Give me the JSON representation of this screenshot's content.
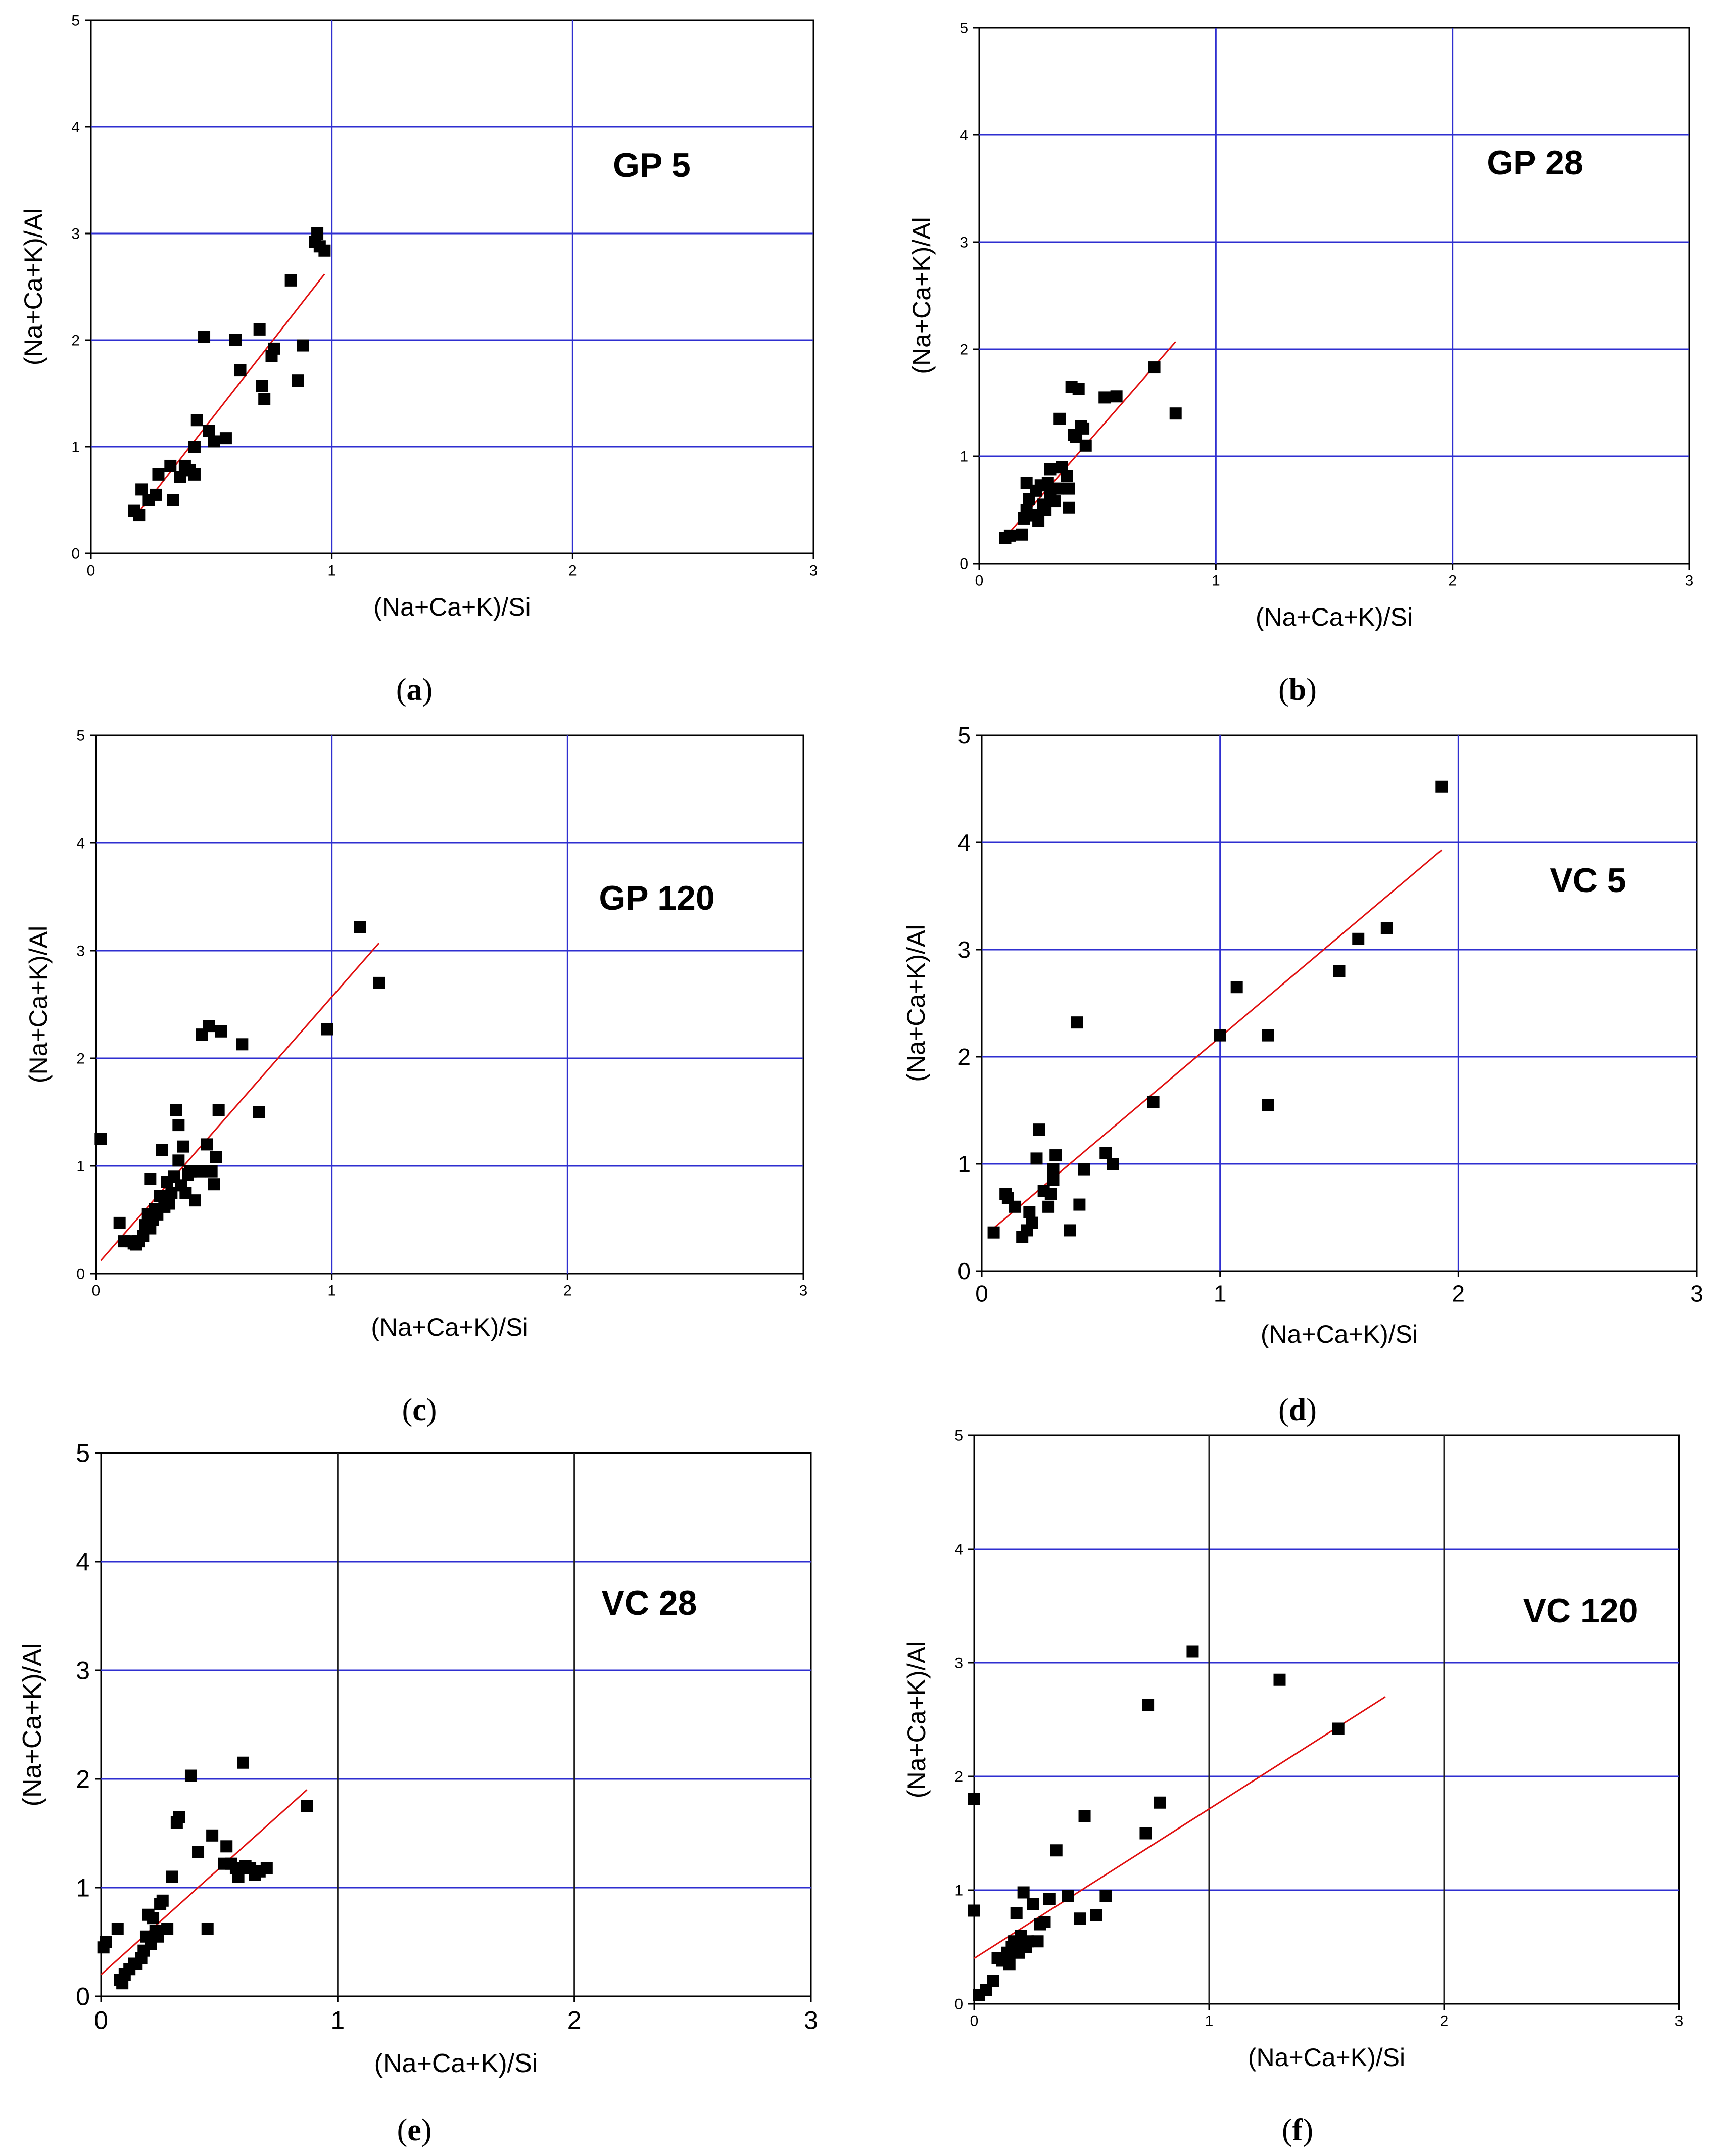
{
  "figure": {
    "title": ""
  },
  "chart_data": [
    {
      "type": "scatter",
      "panel": "(a)",
      "caption": "a",
      "title": "GP 5",
      "xlabel": "(Na+Ca+K)/Si",
      "ylabel": "(Na+Ca+K)/Al",
      "xlim": [
        0,
        3
      ],
      "ylim": [
        0,
        5
      ],
      "xticks": [
        "0",
        "1",
        "2",
        "3"
      ],
      "yticks": [
        "0",
        "1",
        "2",
        "3",
        "4",
        "5"
      ],
      "grid_color": "#2f2fd0",
      "points": [
        [
          0.18,
          0.4
        ],
        [
          0.2,
          0.36
        ],
        [
          0.21,
          0.6
        ],
        [
          0.24,
          0.5
        ],
        [
          0.27,
          0.55
        ],
        [
          0.28,
          0.74
        ],
        [
          0.33,
          0.82
        ],
        [
          0.34,
          0.5
        ],
        [
          0.37,
          0.72
        ],
        [
          0.39,
          0.82
        ],
        [
          0.41,
          0.78
        ],
        [
          0.43,
          0.74
        ],
        [
          0.43,
          1.0
        ],
        [
          0.44,
          1.25
        ],
        [
          0.47,
          2.03
        ],
        [
          0.49,
          1.15
        ],
        [
          0.51,
          1.05
        ],
        [
          0.56,
          1.08
        ],
        [
          0.6,
          2.0
        ],
        [
          0.62,
          1.72
        ],
        [
          0.7,
          2.1
        ],
        [
          0.71,
          1.57
        ],
        [
          0.72,
          1.45
        ],
        [
          0.75,
          1.85
        ],
        [
          0.76,
          1.92
        ],
        [
          0.83,
          2.56
        ],
        [
          0.86,
          1.62
        ],
        [
          0.88,
          1.95
        ],
        [
          0.93,
          2.92
        ],
        [
          0.94,
          3.0
        ],
        [
          0.95,
          2.88
        ],
        [
          0.97,
          2.84
        ]
      ],
      "fit": {
        "x": [
          0.19,
          0.97
        ],
        "y": [
          0.36,
          2.62
        ]
      },
      "point_color": "#000000",
      "fit_color": "#e01010"
    },
    {
      "type": "scatter",
      "panel": "(b)",
      "caption": "b",
      "title": "GP 28",
      "xlabel": "(Na+Ca+K)/Si",
      "ylabel": "(Na+Ca+K)/Al",
      "xlim": [
        0,
        3
      ],
      "ylim": [
        0,
        5
      ],
      "xticks": [
        "0",
        "1",
        "2",
        "3"
      ],
      "yticks": [
        "0",
        "1",
        "2",
        "3",
        "4",
        "5"
      ],
      "grid_color": "#2f2fd0",
      "points": [
        [
          0.11,
          0.24
        ],
        [
          0.13,
          0.26
        ],
        [
          0.18,
          0.27
        ],
        [
          0.19,
          0.42
        ],
        [
          0.2,
          0.5
        ],
        [
          0.2,
          0.75
        ],
        [
          0.21,
          0.6
        ],
        [
          0.23,
          0.45
        ],
        [
          0.24,
          0.68
        ],
        [
          0.25,
          0.4
        ],
        [
          0.26,
          0.73
        ],
        [
          0.27,
          0.55
        ],
        [
          0.28,
          0.5
        ],
        [
          0.29,
          0.75
        ],
        [
          0.3,
          0.65
        ],
        [
          0.3,
          0.88
        ],
        [
          0.32,
          0.58
        ],
        [
          0.33,
          0.7
        ],
        [
          0.34,
          1.35
        ],
        [
          0.35,
          0.9
        ],
        [
          0.37,
          0.82
        ],
        [
          0.38,
          0.7
        ],
        [
          0.38,
          0.52
        ],
        [
          0.39,
          1.65
        ],
        [
          0.4,
          1.2
        ],
        [
          0.41,
          1.18
        ],
        [
          0.42,
          1.63
        ],
        [
          0.43,
          1.28
        ],
        [
          0.44,
          1.26
        ],
        [
          0.45,
          1.1
        ],
        [
          0.53,
          1.55
        ],
        [
          0.58,
          1.56
        ],
        [
          0.74,
          1.83
        ],
        [
          0.83,
          1.4
        ]
      ],
      "fit": {
        "x": [
          0.12,
          0.83
        ],
        "y": [
          0.27,
          2.07
        ]
      },
      "point_color": "#000000",
      "fit_color": "#e01010"
    },
    {
      "type": "scatter",
      "panel": "(c)",
      "caption": "c",
      "title": "GP 120",
      "xlabel": "(Na+Ca+K)/Si",
      "ylabel": "(Na+Ca+K)/Al",
      "xlim": [
        0,
        3
      ],
      "ylim": [
        0,
        5
      ],
      "xticks": [
        "0",
        "1",
        "2",
        "3"
      ],
      "yticks": [
        "0",
        "1",
        "2",
        "3",
        "4",
        "5"
      ],
      "grid_color": "#2f2fd0",
      "points": [
        [
          0.02,
          1.25
        ],
        [
          0.1,
          0.47
        ],
        [
          0.12,
          0.3
        ],
        [
          0.15,
          0.3
        ],
        [
          0.16,
          0.28
        ],
        [
          0.17,
          0.27
        ],
        [
          0.18,
          0.3
        ],
        [
          0.2,
          0.35
        ],
        [
          0.21,
          0.45
        ],
        [
          0.22,
          0.55
        ],
        [
          0.23,
          0.42
        ],
        [
          0.23,
          0.88
        ],
        [
          0.24,
          0.5
        ],
        [
          0.25,
          0.6
        ],
        [
          0.26,
          0.55
        ],
        [
          0.27,
          0.72
        ],
        [
          0.28,
          1.15
        ],
        [
          0.29,
          0.62
        ],
        [
          0.3,
          0.85
        ],
        [
          0.31,
          0.65
        ],
        [
          0.32,
          0.75
        ],
        [
          0.33,
          0.9
        ],
        [
          0.34,
          1.52
        ],
        [
          0.35,
          1.38
        ],
        [
          0.35,
          1.05
        ],
        [
          0.36,
          0.82
        ],
        [
          0.37,
          1.18
        ],
        [
          0.38,
          0.75
        ],
        [
          0.39,
          0.92
        ],
        [
          0.4,
          0.95
        ],
        [
          0.42,
          0.68
        ],
        [
          0.44,
          0.95
        ],
        [
          0.45,
          2.22
        ],
        [
          0.47,
          1.2
        ],
        [
          0.48,
          2.3
        ],
        [
          0.49,
          0.95
        ],
        [
          0.5,
          0.83
        ],
        [
          0.51,
          1.08
        ],
        [
          0.52,
          1.52
        ],
        [
          0.53,
          2.25
        ],
        [
          0.62,
          2.13
        ],
        [
          0.69,
          1.5
        ],
        [
          0.98,
          2.27
        ],
        [
          1.12,
          3.22
        ],
        [
          1.2,
          2.7
        ]
      ],
      "fit": {
        "x": [
          0.02,
          1.2
        ],
        "y": [
          0.12,
          3.07
        ]
      },
      "point_color": "#000000",
      "fit_color": "#e01010"
    },
    {
      "type": "scatter",
      "panel": "(d)",
      "caption": "d",
      "title": "VC 5",
      "xlabel": "(Na+Ca+K)/Si",
      "ylabel": "(Na+Ca+K)/Al",
      "xlim": [
        0,
        3
      ],
      "ylim": [
        0,
        5
      ],
      "xticks": [
        "0",
        "1",
        "2",
        "3"
      ],
      "yticks": [
        "0",
        "1",
        "2",
        "3",
        "4",
        "5"
      ],
      "grid_color": "#2f2fd0",
      "points": [
        [
          0.05,
          0.36
        ],
        [
          0.1,
          0.72
        ],
        [
          0.11,
          0.68
        ],
        [
          0.14,
          0.6
        ],
        [
          0.17,
          0.32
        ],
        [
          0.19,
          0.38
        ],
        [
          0.2,
          0.55
        ],
        [
          0.21,
          0.45
        ],
        [
          0.23,
          1.05
        ],
        [
          0.24,
          1.32
        ],
        [
          0.26,
          0.75
        ],
        [
          0.28,
          0.6
        ],
        [
          0.29,
          0.72
        ],
        [
          0.3,
          0.85
        ],
        [
          0.3,
          0.95
        ],
        [
          0.31,
          1.08
        ],
        [
          0.37,
          0.38
        ],
        [
          0.4,
          2.32
        ],
        [
          0.41,
          0.62
        ],
        [
          0.43,
          0.95
        ],
        [
          0.52,
          1.1
        ],
        [
          0.55,
          1.0
        ],
        [
          0.72,
          1.58
        ],
        [
          1.0,
          2.2
        ],
        [
          1.07,
          2.65
        ],
        [
          1.2,
          2.2
        ],
        [
          1.2,
          1.55
        ],
        [
          1.5,
          2.8
        ],
        [
          1.58,
          3.1
        ],
        [
          1.7,
          3.2
        ],
        [
          1.93,
          4.52
        ]
      ],
      "fit": {
        "x": [
          0.05,
          1.93
        ],
        "y": [
          0.4,
          3.93
        ]
      },
      "point_color": "#000000",
      "fit_color": "#e01010"
    },
    {
      "type": "scatter",
      "panel": "(e)",
      "caption": "e",
      "title": "VC 28",
      "xlabel": "(Na+Ca+K)/Si",
      "ylabel": "(Na+Ca+K)/Al",
      "xlim": [
        0,
        3
      ],
      "ylim": [
        0,
        5
      ],
      "xticks": [
        "0",
        "1",
        "2",
        "3"
      ],
      "yticks": [
        "0",
        "1",
        "2",
        "3",
        "4",
        "5"
      ],
      "grid_color": "#2f2fd0",
      "vgrid_color": "#222222",
      "points": [
        [
          0.01,
          0.45
        ],
        [
          0.02,
          0.5
        ],
        [
          0.07,
          0.62
        ],
        [
          0.08,
          0.15
        ],
        [
          0.09,
          0.12
        ],
        [
          0.1,
          0.2
        ],
        [
          0.12,
          0.25
        ],
        [
          0.14,
          0.3
        ],
        [
          0.15,
          0.3
        ],
        [
          0.17,
          0.35
        ],
        [
          0.18,
          0.42
        ],
        [
          0.19,
          0.55
        ],
        [
          0.2,
          0.75
        ],
        [
          0.21,
          0.48
        ],
        [
          0.22,
          0.72
        ],
        [
          0.23,
          0.6
        ],
        [
          0.24,
          0.55
        ],
        [
          0.25,
          0.85
        ],
        [
          0.26,
          0.88
        ],
        [
          0.28,
          0.62
        ],
        [
          0.3,
          1.1
        ],
        [
          0.32,
          1.6
        ],
        [
          0.33,
          1.65
        ],
        [
          0.38,
          2.03
        ],
        [
          0.41,
          1.33
        ],
        [
          0.45,
          0.62
        ],
        [
          0.47,
          1.48
        ],
        [
          0.52,
          1.22
        ],
        [
          0.53,
          1.38
        ],
        [
          0.55,
          1.22
        ],
        [
          0.57,
          1.18
        ],
        [
          0.58,
          1.1
        ],
        [
          0.6,
          2.15
        ],
        [
          0.61,
          1.2
        ],
        [
          0.63,
          1.18
        ],
        [
          0.65,
          1.12
        ],
        [
          0.67,
          1.15
        ],
        [
          0.7,
          1.18
        ],
        [
          0.87,
          1.75
        ]
      ],
      "fit": {
        "x": [
          0.0,
          0.87
        ],
        "y": [
          0.2,
          1.9
        ]
      },
      "point_color": "#000000",
      "fit_color": "#e01010"
    },
    {
      "type": "scatter",
      "panel": "(f)",
      "caption": "f",
      "title": "VC 120",
      "xlabel": "(Na+Ca+K)/Si",
      "ylabel": "(Na+Ca+K)/Al",
      "xlim": [
        0,
        3
      ],
      "ylim": [
        0,
        5
      ],
      "xticks": [
        "0",
        "1",
        "2",
        "3"
      ],
      "yticks": [
        "0",
        "1",
        "2",
        "3",
        "4",
        "5"
      ],
      "grid_color": "#2f2fd0",
      "vgrid_color": "#222222",
      "points": [
        [
          0.0,
          1.8
        ],
        [
          0.0,
          0.82
        ],
        [
          0.02,
          0.08
        ],
        [
          0.05,
          0.12
        ],
        [
          0.08,
          0.2
        ],
        [
          0.1,
          0.4
        ],
        [
          0.12,
          0.38
        ],
        [
          0.14,
          0.45
        ],
        [
          0.15,
          0.35
        ],
        [
          0.16,
          0.5
        ],
        [
          0.17,
          0.55
        ],
        [
          0.18,
          0.8
        ],
        [
          0.19,
          0.45
        ],
        [
          0.2,
          0.6
        ],
        [
          0.21,
          0.98
        ],
        [
          0.22,
          0.5
        ],
        [
          0.23,
          0.55
        ],
        [
          0.25,
          0.88
        ],
        [
          0.27,
          0.55
        ],
        [
          0.28,
          0.7
        ],
        [
          0.3,
          0.72
        ],
        [
          0.32,
          0.92
        ],
        [
          0.35,
          1.35
        ],
        [
          0.4,
          0.95
        ],
        [
          0.45,
          0.75
        ],
        [
          0.47,
          1.65
        ],
        [
          0.52,
          0.78
        ],
        [
          0.56,
          0.95
        ],
        [
          0.73,
          1.5
        ],
        [
          0.74,
          2.63
        ],
        [
          0.79,
          1.77
        ],
        [
          0.93,
          3.1
        ],
        [
          1.3,
          2.85
        ],
        [
          1.55,
          2.42
        ]
      ],
      "fit": {
        "x": [
          0.0,
          1.75
        ],
        "y": [
          0.4,
          2.7
        ]
      },
      "point_color": "#000000",
      "fit_color": "#e01010"
    }
  ]
}
